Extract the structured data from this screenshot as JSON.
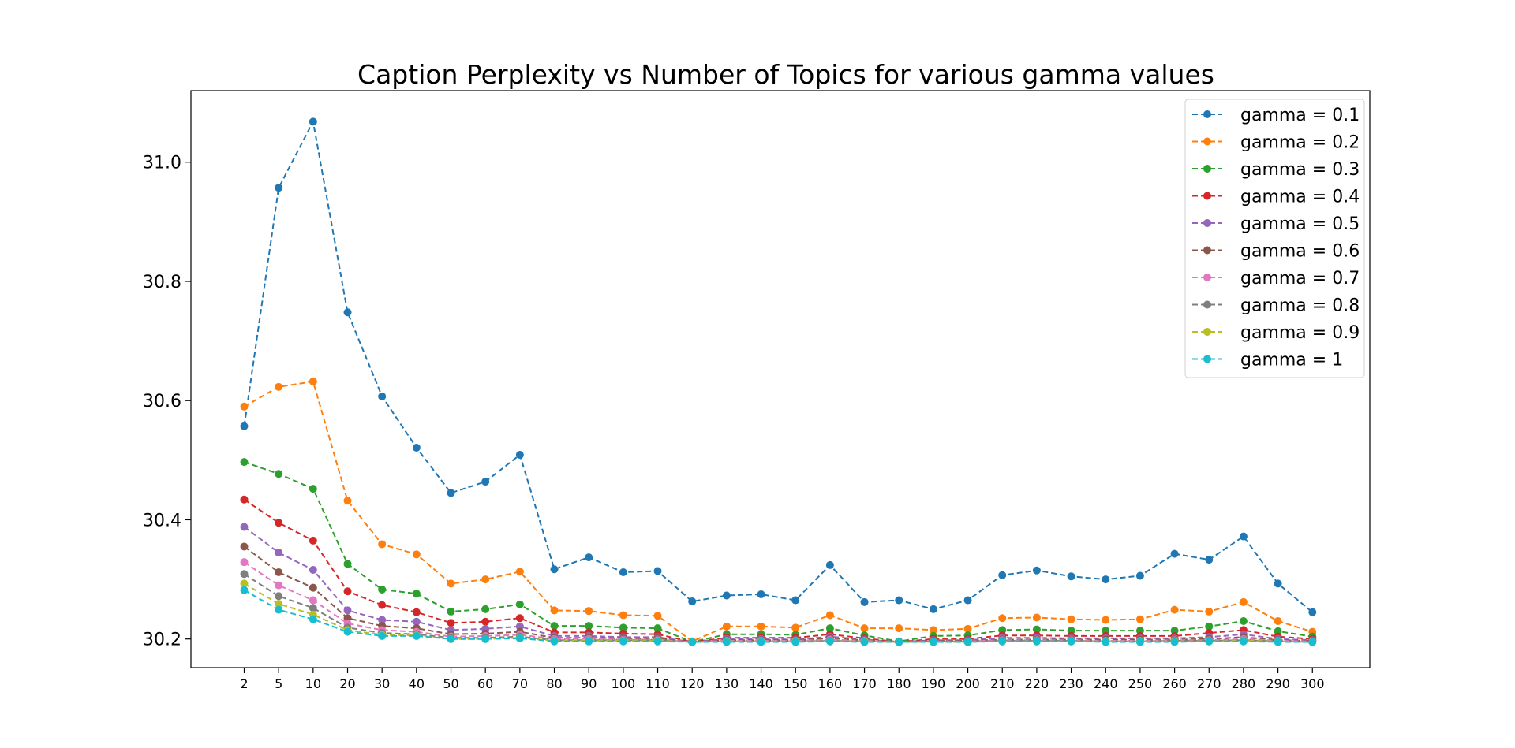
{
  "chart_data": {
    "type": "line",
    "title": "Caption Perplexity vs Number of Topics for various gamma values",
    "xlabel": "",
    "ylabel": "",
    "x": [
      2,
      5,
      10,
      20,
      30,
      40,
      50,
      60,
      70,
      80,
      90,
      100,
      110,
      120,
      130,
      140,
      150,
      160,
      170,
      180,
      190,
      200,
      210,
      220,
      230,
      240,
      250,
      260,
      270,
      280,
      290,
      300
    ],
    "x_tick_labels": [
      "2",
      "5",
      "10",
      "20",
      "30",
      "40",
      "50",
      "60",
      "70",
      "80",
      "90",
      "100",
      "110",
      "120",
      "130",
      "140",
      "150",
      "160",
      "170",
      "180",
      "190",
      "200",
      "210",
      "220",
      "230",
      "240",
      "250",
      "260",
      "270",
      "280",
      "290",
      "300"
    ],
    "ylim": [
      30.152,
      31.12
    ],
    "y_ticks": [
      30.2,
      30.4,
      30.6,
      30.8,
      31.0
    ],
    "y_tick_labels": [
      "30.2",
      "30.4",
      "30.6",
      "30.8",
      "31.0"
    ],
    "grid": false,
    "legend_position": "top-right",
    "line_style": "dashed",
    "marker": "circle",
    "series": [
      {
        "name": "gamma = 0.1",
        "color": "#1f77b4",
        "values": [
          30.557,
          30.957,
          31.068,
          30.748,
          30.607,
          30.521,
          30.445,
          30.464,
          30.509,
          30.317,
          30.337,
          30.312,
          30.314,
          30.263,
          30.273,
          30.275,
          30.265,
          30.324,
          30.262,
          30.265,
          30.25,
          30.265,
          30.307,
          30.315,
          30.305,
          30.3,
          30.306,
          30.343,
          30.333,
          30.372,
          30.293,
          30.245
        ]
      },
      {
        "name": "gamma = 0.2",
        "color": "#ff7f0e",
        "values": [
          30.59,
          30.623,
          30.632,
          30.432,
          30.359,
          30.342,
          30.293,
          30.3,
          30.313,
          30.248,
          30.247,
          30.24,
          30.239,
          30.196,
          30.221,
          30.221,
          30.219,
          30.24,
          30.218,
          30.218,
          30.215,
          30.217,
          30.235,
          30.236,
          30.233,
          30.232,
          30.233,
          30.249,
          30.246,
          30.262,
          30.23,
          30.212
        ]
      },
      {
        "name": "gamma = 0.3",
        "color": "#2ca02c",
        "values": [
          30.497,
          30.477,
          30.452,
          30.326,
          30.283,
          30.276,
          30.246,
          30.25,
          30.258,
          30.222,
          30.222,
          30.219,
          30.218,
          30.195,
          30.208,
          30.208,
          30.207,
          30.218,
          30.206,
          30.196,
          30.205,
          30.206,
          30.215,
          30.216,
          30.214,
          30.214,
          30.214,
          30.214,
          30.221,
          30.23,
          30.213,
          30.204
        ]
      },
      {
        "name": "gamma = 0.4",
        "color": "#d62728",
        "values": [
          30.434,
          30.395,
          30.365,
          30.28,
          30.257,
          30.245,
          30.227,
          30.229,
          30.235,
          30.211,
          30.211,
          30.209,
          30.208,
          30.195,
          30.202,
          30.202,
          30.202,
          30.208,
          30.201,
          30.195,
          30.2,
          30.2,
          30.206,
          30.206,
          30.205,
          30.205,
          30.205,
          30.205,
          30.21,
          30.215,
          30.204,
          30.2
        ]
      },
      {
        "name": "gamma = 0.5",
        "color": "#9467bd",
        "values": [
          30.388,
          30.345,
          30.316,
          30.248,
          30.232,
          30.229,
          30.215,
          30.217,
          30.221,
          30.205,
          30.205,
          30.203,
          30.203,
          30.195,
          30.2,
          30.2,
          30.199,
          30.204,
          30.199,
          30.195,
          30.198,
          30.198,
          30.202,
          30.202,
          30.201,
          30.201,
          30.201,
          30.201,
          30.203,
          30.208,
          30.2,
          30.198
        ]
      },
      {
        "name": "gamma = 0.6",
        "color": "#8c564b",
        "values": [
          30.355,
          30.312,
          30.286,
          30.235,
          30.222,
          30.218,
          30.208,
          30.209,
          30.212,
          30.202,
          30.202,
          30.201,
          30.201,
          30.195,
          30.198,
          30.198,
          30.198,
          30.201,
          30.198,
          30.195,
          30.197,
          30.197,
          30.199,
          30.199,
          30.199,
          30.199,
          30.199,
          30.199,
          30.2,
          30.203,
          30.198,
          30.197
        ]
      },
      {
        "name": "gamma = 0.7",
        "color": "#e377c2",
        "values": [
          30.329,
          30.29,
          30.265,
          30.226,
          30.215,
          30.212,
          30.204,
          30.205,
          30.207,
          30.2,
          30.2,
          30.199,
          30.199,
          30.195,
          30.197,
          30.197,
          30.197,
          30.199,
          30.197,
          30.195,
          30.196,
          30.196,
          30.198,
          30.198,
          30.198,
          30.197,
          30.197,
          30.198,
          30.198,
          30.2,
          30.197,
          30.196
        ]
      },
      {
        "name": "gamma = 0.8",
        "color": "#7f7f7f",
        "values": [
          30.309,
          30.272,
          30.252,
          30.219,
          30.21,
          30.208,
          30.202,
          30.202,
          30.204,
          30.198,
          30.198,
          30.198,
          30.198,
          30.195,
          30.196,
          30.196,
          30.196,
          30.197,
          30.196,
          30.195,
          30.196,
          30.196,
          30.197,
          30.197,
          30.197,
          30.196,
          30.196,
          30.197,
          30.197,
          30.198,
          30.196,
          30.195
        ]
      },
      {
        "name": "gamma = 0.9",
        "color": "#bcbd22",
        "values": [
          30.293,
          30.259,
          30.241,
          30.215,
          30.207,
          30.206,
          30.2,
          30.2,
          30.202,
          30.197,
          30.197,
          30.197,
          30.197,
          30.195,
          30.196,
          30.196,
          30.196,
          30.196,
          30.196,
          30.195,
          30.195,
          30.195,
          30.196,
          30.196,
          30.196,
          30.196,
          30.196,
          30.196,
          30.196,
          30.197,
          30.196,
          30.195
        ]
      },
      {
        "name": "gamma = 1",
        "color": "#17becf",
        "values": [
          30.282,
          30.249,
          30.233,
          30.212,
          30.205,
          30.205,
          30.2,
          30.2,
          30.201,
          30.196,
          30.196,
          30.196,
          30.196,
          30.195,
          30.195,
          30.195,
          30.195,
          30.196,
          30.195,
          30.195,
          30.195,
          30.195,
          30.196,
          30.196,
          30.196,
          30.195,
          30.195,
          30.195,
          30.196,
          30.196,
          30.195,
          30.195
        ]
      }
    ]
  }
}
